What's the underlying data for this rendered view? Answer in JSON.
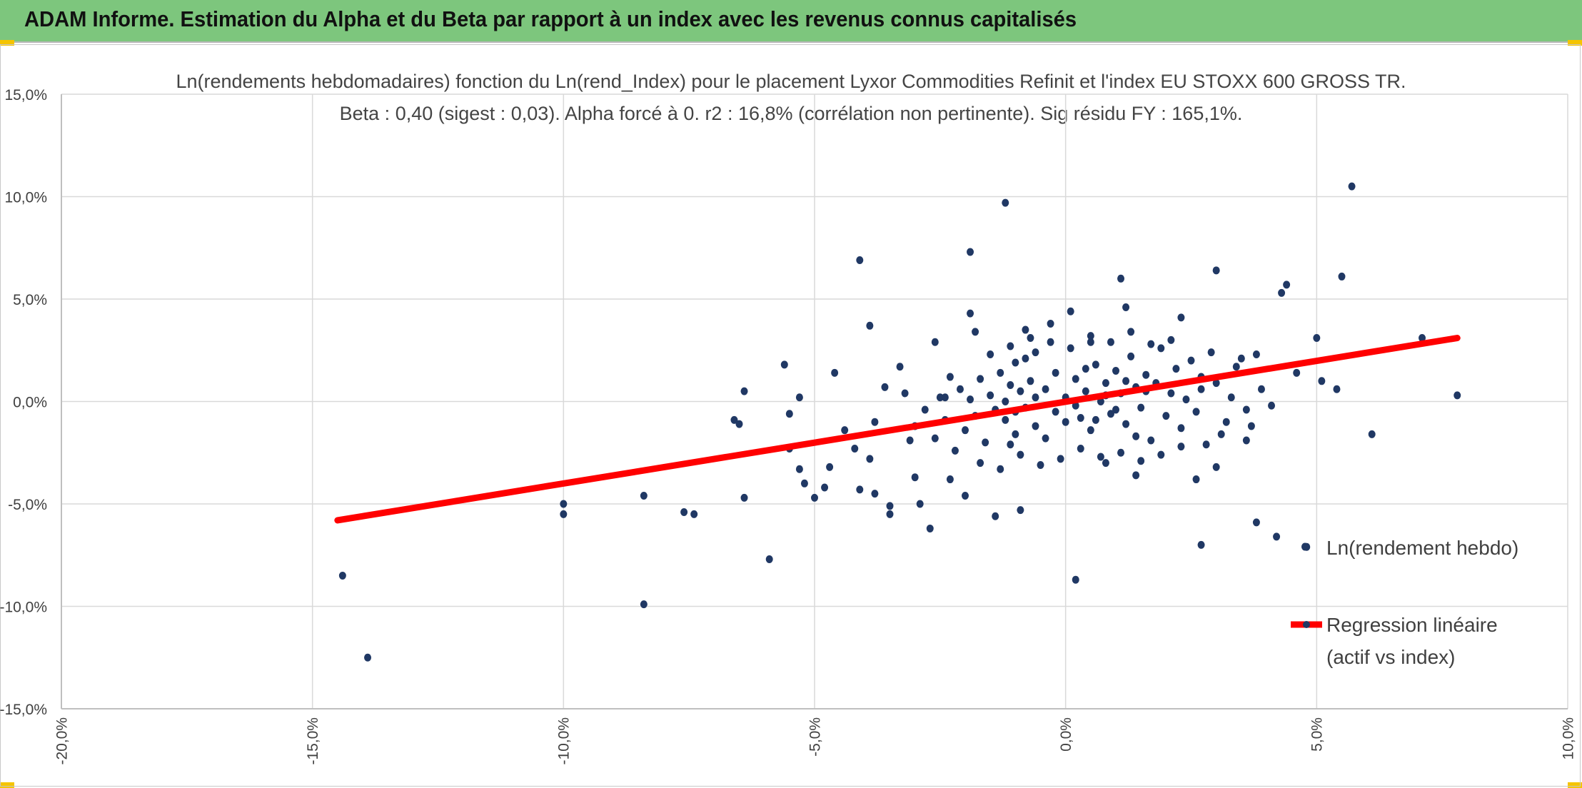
{
  "banner": {
    "title": "ADAM Informe. Estimation du Alpha et du Beta par rapport à un index avec les revenus connus capitalisés",
    "color": "#7dc67d",
    "corner_color": "#f5c400"
  },
  "chart_data": {
    "type": "scatter",
    "title": "Ln(rendements hebdomadaires) fonction du Ln(rend_Index) pour le placement Lyxor Commodities Refinit et l'index EU STOXX 600 GROSS TR.",
    "subtitle": "Beta : 0,40 (sigest : 0,03). Alpha forcé à 0. r2 : 16,8% (corrélation non pertinente). Sig résidu FY : 165,1%.",
    "xlabel": "",
    "ylabel": "",
    "xlim": [
      -20,
      10
    ],
    "ylim": [
      -15,
      15
    ],
    "x_ticks": [
      -20,
      -15,
      -10,
      -5,
      0,
      5,
      10
    ],
    "y_ticks": [
      -15,
      -10,
      -5,
      0,
      5,
      10,
      15
    ],
    "x_tick_labels": [
      "-20,0%",
      "-15,0%",
      "-10,0%",
      "-5,0%",
      "0,0%",
      "5,0%",
      "10,0%"
    ],
    "y_tick_labels": [
      "-15,0%",
      "-10,0%",
      "-5,0%",
      "0,0%",
      "5,0%",
      "10,0%",
      "15,0%"
    ],
    "grid": true,
    "legend_position": "right",
    "series": [
      {
        "name": "Ln(rendement hebdo)",
        "kind": "points",
        "color": "#203864",
        "points": [
          [
            -14.4,
            -8.5
          ],
          [
            -13.9,
            -12.5
          ],
          [
            -10.0,
            -5.0
          ],
          [
            -10.0,
            -5.5
          ],
          [
            -8.4,
            -4.6
          ],
          [
            -8.4,
            -9.9
          ],
          [
            -7.6,
            -5.4
          ],
          [
            -7.4,
            -5.5
          ],
          [
            -6.6,
            -0.9
          ],
          [
            -6.5,
            -1.1
          ],
          [
            -6.4,
            0.5
          ],
          [
            -6.4,
            -4.7
          ],
          [
            -5.9,
            -7.7
          ],
          [
            -5.6,
            1.8
          ],
          [
            -5.5,
            -0.6
          ],
          [
            -5.5,
            -2.3
          ],
          [
            -5.3,
            0.2
          ],
          [
            -5.3,
            -3.3
          ],
          [
            -5.2,
            -4.0
          ],
          [
            -5.0,
            -4.7
          ],
          [
            -4.8,
            -4.2
          ],
          [
            -4.7,
            -3.2
          ],
          [
            -4.6,
            1.4
          ],
          [
            -4.4,
            -1.4
          ],
          [
            -4.2,
            -2.3
          ],
          [
            -4.1,
            -4.3
          ],
          [
            -4.1,
            6.9
          ],
          [
            -3.9,
            -2.8
          ],
          [
            -3.8,
            -1.0
          ],
          [
            -3.8,
            -4.5
          ],
          [
            -3.9,
            3.7
          ],
          [
            -3.6,
            0.7
          ],
          [
            -3.5,
            -5.1
          ],
          [
            -3.5,
            -5.5
          ],
          [
            -3.3,
            1.7
          ],
          [
            -3.1,
            -1.9
          ],
          [
            -3.0,
            -3.7
          ],
          [
            -2.9,
            -5.0
          ],
          [
            -2.7,
            -6.2
          ],
          [
            -2.6,
            2.9
          ],
          [
            -2.4,
            0.2
          ],
          [
            -2.3,
            -3.8
          ],
          [
            -2.0,
            -4.6
          ],
          [
            -1.9,
            4.3
          ],
          [
            -1.9,
            7.3
          ],
          [
            -1.8,
            3.4
          ],
          [
            -1.4,
            -5.6
          ],
          [
            -1.2,
            9.7
          ],
          [
            -1.1,
            -2.1
          ],
          [
            -1.0,
            1.9
          ],
          [
            -0.9,
            -5.3
          ],
          [
            -0.8,
            3.5
          ],
          [
            -0.6,
            2.4
          ],
          [
            -0.3,
            3.8
          ],
          [
            0.1,
            4.4
          ],
          [
            0.2,
            -8.7
          ],
          [
            0.5,
            2.9
          ],
          [
            0.8,
            -3.0
          ],
          [
            1.1,
            6.0
          ],
          [
            1.2,
            4.6
          ],
          [
            1.4,
            -3.6
          ],
          [
            2.3,
            4.1
          ],
          [
            2.6,
            -3.8
          ],
          [
            2.7,
            -7.0
          ],
          [
            3.0,
            6.4
          ],
          [
            3.0,
            -3.2
          ],
          [
            3.6,
            -1.9
          ],
          [
            3.8,
            2.3
          ],
          [
            3.8,
            -5.9
          ],
          [
            4.2,
            -6.6
          ],
          [
            4.3,
            5.3
          ],
          [
            4.4,
            5.7
          ],
          [
            4.6,
            1.4
          ],
          [
            4.8,
            -7.1
          ],
          [
            5.0,
            3.1
          ],
          [
            5.1,
            1.0
          ],
          [
            5.4,
            0.6
          ],
          [
            5.5,
            6.1
          ],
          [
            5.7,
            10.5
          ],
          [
            6.1,
            -1.6
          ],
          [
            7.1,
            3.1
          ],
          [
            7.8,
            0.3
          ],
          [
            -0.4,
            0.6
          ],
          [
            -0.2,
            -0.5
          ],
          [
            0.0,
            0.2
          ],
          [
            0.2,
            1.1
          ],
          [
            0.3,
            -0.8
          ],
          [
            0.4,
            0.5
          ],
          [
            0.5,
            -1.4
          ],
          [
            0.6,
            1.8
          ],
          [
            0.7,
            0.0
          ],
          [
            0.8,
            0.9
          ],
          [
            0.9,
            -0.6
          ],
          [
            1.0,
            1.5
          ],
          [
            1.1,
            0.4
          ],
          [
            1.2,
            -1.1
          ],
          [
            1.3,
            2.2
          ],
          [
            1.4,
            0.7
          ],
          [
            1.5,
            -0.3
          ],
          [
            1.6,
            1.3
          ],
          [
            1.7,
            -1.9
          ],
          [
            1.8,
            0.9
          ],
          [
            1.9,
            2.6
          ],
          [
            2.0,
            -0.7
          ],
          [
            2.1,
            0.4
          ],
          [
            2.2,
            1.6
          ],
          [
            2.3,
            -1.3
          ],
          [
            2.4,
            0.1
          ],
          [
            2.5,
            2.0
          ],
          [
            2.6,
            -0.5
          ],
          [
            2.7,
            1.2
          ],
          [
            2.8,
            -2.1
          ],
          [
            -0.6,
            -1.2
          ],
          [
            -0.7,
            1.0
          ],
          [
            -0.8,
            -0.3
          ],
          [
            -0.9,
            0.5
          ],
          [
            -1.0,
            -1.6
          ],
          [
            -1.1,
            0.8
          ],
          [
            -1.2,
            -0.9
          ],
          [
            -1.3,
            1.4
          ],
          [
            -1.4,
            -0.4
          ],
          [
            -1.5,
            0.3
          ],
          [
            -1.6,
            -2.0
          ],
          [
            -1.7,
            1.1
          ],
          [
            -1.8,
            -0.7
          ],
          [
            -1.9,
            0.1
          ],
          [
            -2.0,
            -1.4
          ],
          [
            -2.1,
            0.6
          ],
          [
            -2.2,
            -2.4
          ],
          [
            -2.3,
            1.2
          ],
          [
            -2.4,
            -0.9
          ],
          [
            -2.5,
            0.2
          ],
          [
            -2.6,
            -1.8
          ],
          [
            -2.8,
            -0.4
          ],
          [
            -3.0,
            -1.2
          ],
          [
            -3.2,
            0.4
          ],
          [
            0.1,
            2.6
          ],
          [
            0.3,
            -2.3
          ],
          [
            0.5,
            3.2
          ],
          [
            0.7,
            -2.7
          ],
          [
            0.9,
            2.9
          ],
          [
            1.1,
            -2.5
          ],
          [
            1.3,
            3.4
          ],
          [
            1.5,
            -2.9
          ],
          [
            1.7,
            2.8
          ],
          [
            1.9,
            -2.6
          ],
          [
            2.1,
            3.0
          ],
          [
            2.3,
            -2.2
          ],
          [
            -0.1,
            -2.8
          ],
          [
            -0.3,
            2.9
          ],
          [
            -0.5,
            -3.1
          ],
          [
            -0.7,
            3.1
          ],
          [
            -0.9,
            -2.6
          ],
          [
            -1.1,
            2.7
          ],
          [
            -1.3,
            -3.3
          ],
          [
            -1.5,
            2.3
          ],
          [
            -1.7,
            -3.0
          ],
          [
            0.0,
            -1.0
          ],
          [
            0.2,
            -0.2
          ],
          [
            0.4,
            1.6
          ],
          [
            0.6,
            -0.9
          ],
          [
            0.8,
            0.3
          ],
          [
            1.0,
            -0.4
          ],
          [
            1.2,
            1.0
          ],
          [
            1.4,
            -1.7
          ],
          [
            1.6,
            0.5
          ],
          [
            -0.2,
            1.4
          ],
          [
            -0.4,
            -1.8
          ],
          [
            -0.6,
            0.2
          ],
          [
            -0.8,
            2.1
          ],
          [
            -1.0,
            -0.5
          ],
          [
            -1.2,
            0.0
          ],
          [
            3.0,
            0.9
          ],
          [
            3.2,
            -1.0
          ],
          [
            3.4,
            1.7
          ],
          [
            3.6,
            -0.4
          ],
          [
            3.3,
            0.2
          ],
          [
            2.9,
            2.4
          ],
          [
            3.1,
            -1.6
          ],
          [
            3.5,
            2.1
          ],
          [
            3.9,
            0.6
          ],
          [
            4.1,
            -0.2
          ],
          [
            3.7,
            -1.2
          ],
          [
            2.7,
            0.6
          ]
        ]
      },
      {
        "name": "Regression linéaire\n(actif vs index)",
        "kind": "line",
        "color": "#ff0000",
        "x": [
          -14.5,
          7.8
        ],
        "y": [
          -5.8,
          3.1
        ]
      }
    ]
  }
}
